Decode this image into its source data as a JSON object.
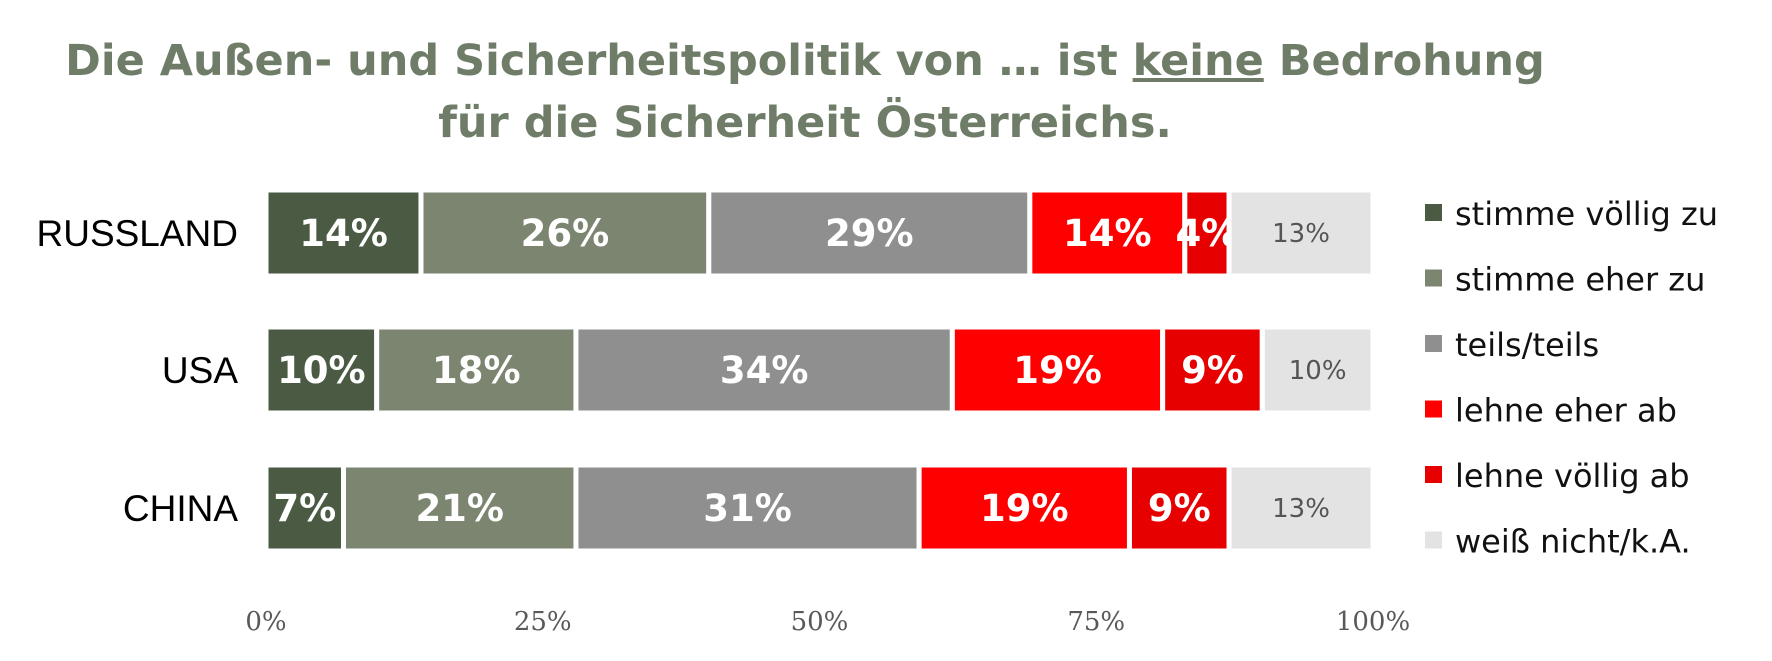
{
  "chart_data": {
    "type": "bar",
    "orientation": "horizontal",
    "stacked": true,
    "title_parts": {
      "line1_before": "Die Außen- und Sicherheitspolitik von … ist ",
      "line1_emph": "keine",
      "line1_after": " Bedrohung",
      "line2": "für die Sicherheit Österreichs."
    },
    "categories": [
      "RUSSLAND",
      "USA",
      "CHINA"
    ],
    "series": [
      {
        "name": "stimme völlig zu",
        "color": "#4b5a43",
        "values": [
          14,
          10,
          7
        ],
        "labels": [
          "14%",
          "10%",
          "7%"
        ]
      },
      {
        "name": "stimme eher zu",
        "color": "#7b8570",
        "values": [
          26,
          18,
          21
        ],
        "labels": [
          "26%",
          "18%",
          "21%"
        ]
      },
      {
        "name": "teils/teils",
        "color": "#8f8f8f",
        "values": [
          29,
          34,
          31
        ],
        "labels": [
          "29%",
          "34%",
          "31%"
        ]
      },
      {
        "name": "lehne eher ab",
        "color": "#ff0000",
        "values": [
          14,
          19,
          19
        ],
        "labels": [
          "14%",
          "19%",
          "19%"
        ]
      },
      {
        "name": "lehne völlig ab",
        "color": "#e60000",
        "values": [
          4,
          9,
          9
        ],
        "labels": [
          "4%",
          "9%",
          "9%"
        ]
      },
      {
        "name": "weiß nicht/k.A.",
        "color": "#e3e3e3",
        "values": [
          13,
          10,
          13
        ],
        "labels": [
          "13%",
          "10%",
          "13%"
        ]
      }
    ],
    "xlim": [
      0,
      100
    ],
    "x_ticks": [
      0,
      25,
      50,
      75,
      100
    ],
    "x_tick_labels": [
      "0%",
      "25%",
      "50%",
      "75%",
      "100%"
    ],
    "grid": false,
    "legend_position": "right"
  }
}
